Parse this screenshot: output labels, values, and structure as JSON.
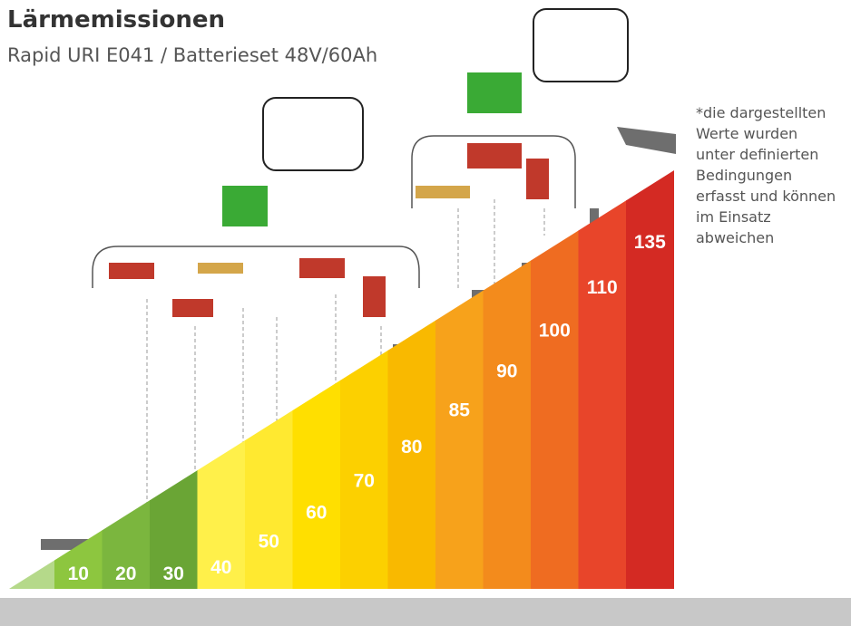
{
  "header": {
    "title": "Lärmemissionen",
    "subtitle": "Rapid URI E041 / Batterieset 48V/60Ah"
  },
  "note": [
    "*die dargestellten",
    "Werte wurden",
    "unter definierten",
    "Bedingungen",
    "erfasst und können",
    "im Einsatz",
    "abweichen"
  ],
  "levels": [
    {
      "value": 10,
      "color": "#8dc63f"
    },
    {
      "value": 20,
      "color": "#7bb63e"
    },
    {
      "value": 30,
      "color": "#6aa535"
    },
    {
      "value": 40,
      "color": "#fff04a"
    },
    {
      "value": 50,
      "color": "#ffe930"
    },
    {
      "value": 60,
      "color": "#ffdf00"
    },
    {
      "value": 70,
      "color": "#fcd000"
    },
    {
      "value": 80,
      "color": "#f9b900"
    },
    {
      "value": 85,
      "color": "#f7a21b"
    },
    {
      "value": 90,
      "color": "#f38b1c"
    },
    {
      "value": 100,
      "color": "#ef6c21"
    },
    {
      "value": 110,
      "color": "#e8452a"
    },
    {
      "value": 135,
      "color": "#d42a23"
    }
  ]
}
